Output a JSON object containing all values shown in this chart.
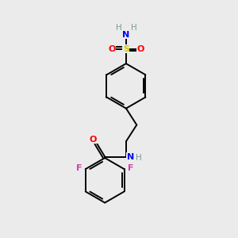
{
  "bg_color": "#ebebeb",
  "atom_colors": {
    "C": "#000000",
    "H": "#7a9a9a",
    "N": "#0000FF",
    "O": "#FF0000",
    "S": "#cccc00",
    "F": "#cc44aa"
  },
  "bond_color": "#000000",
  "bond_width": 1.4
}
